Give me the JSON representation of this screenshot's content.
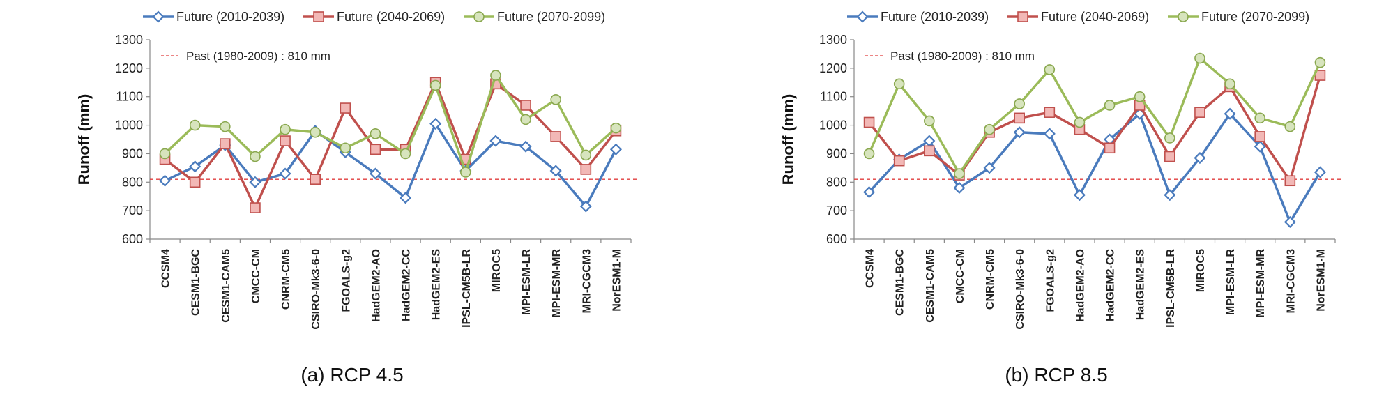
{
  "captions": {
    "a": "(a) RCP 4.5",
    "b": "(b) RCP 8.5"
  },
  "chart_data": [
    {
      "type": "line",
      "panel": "(a) RCP 4.5",
      "ylabel": "Runoff (mm)",
      "ylim": [
        600,
        1300
      ],
      "yticks": [
        600,
        700,
        800,
        900,
        1000,
        1100,
        1200,
        1300
      ],
      "categories": [
        "CCSM4",
        "CESM1-BGC",
        "CESM1-CAM5",
        "CMCC-CM",
        "CNRM-CM5",
        "CSIRO-Mk3-6-0",
        "FGOALS-g2",
        "HadGEM2-AO",
        "HadGEM2-CC",
        "HadGEM2-ES",
        "IPSL-CM5B-LR",
        "MIROC5",
        "MPI-ESM-LR",
        "MPI-ESM-MR",
        "MRI-CGCM3",
        "NorESM1-M"
      ],
      "series": [
        {
          "name": "Future (2010-2039)",
          "color": "#4a7bbd",
          "marker": "diamond",
          "values": [
            805,
            855,
            930,
            800,
            830,
            980,
            905,
            830,
            745,
            1005,
            840,
            945,
            925,
            840,
            715,
            915
          ]
        },
        {
          "name": "Future (2040-2069)",
          "color": "#c0504d",
          "marker": "square",
          "values": [
            880,
            800,
            935,
            710,
            945,
            810,
            1060,
            915,
            915,
            1150,
            880,
            1145,
            1070,
            960,
            845,
            980
          ]
        },
        {
          "name": "Future (2070-2099)",
          "color": "#9bbb59",
          "marker": "circle",
          "values": [
            900,
            1000,
            995,
            890,
            985,
            975,
            920,
            970,
            900,
            1140,
            835,
            1175,
            1020,
            1090,
            895,
            990
          ]
        }
      ],
      "reference_line": {
        "label": "Past (1980-2009)  : 810  mm",
        "value": 810,
        "color": "#e03c3c"
      }
    },
    {
      "type": "line",
      "panel": "(b) RCP 8.5",
      "ylabel": "Runoff (mm)",
      "ylim": [
        600,
        1300
      ],
      "yticks": [
        600,
        700,
        800,
        900,
        1000,
        1100,
        1200,
        1300
      ],
      "categories": [
        "CCSM4",
        "CESM1-BGC",
        "CESM1-CAM5",
        "CMCC-CM",
        "CNRM-CM5",
        "CSIRO-Mk3-6-0",
        "FGOALS-g2",
        "HadGEM2-AO",
        "HadGEM2-CC",
        "HadGEM2-ES",
        "IPSL-CM5B-LR",
        "MIROC5",
        "MPI-ESM-LR",
        "MPI-ESM-MR",
        "MRI-CGCM3",
        "NorESM1-M"
      ],
      "series": [
        {
          "name": "Future (2010-2039)",
          "color": "#4a7bbd",
          "marker": "diamond",
          "values": [
            765,
            880,
            945,
            780,
            850,
            975,
            970,
            755,
            950,
            1040,
            755,
            885,
            1040,
            925,
            660,
            835
          ]
        },
        {
          "name": "Future (2040-2069)",
          "color": "#c0504d",
          "marker": "square",
          "values": [
            1010,
            875,
            910,
            825,
            975,
            1025,
            1045,
            985,
            920,
            1070,
            890,
            1045,
            1135,
            960,
            805,
            1175
          ]
        },
        {
          "name": "Future (2070-2099)",
          "color": "#9bbb59",
          "marker": "circle",
          "values": [
            900,
            1145,
            1015,
            830,
            985,
            1075,
            1195,
            1010,
            1070,
            1100,
            955,
            1235,
            1145,
            1025,
            995,
            1220
          ]
        }
      ],
      "reference_line": {
        "label": "Past (1980-2009)  : 810  mm",
        "value": 810,
        "color": "#e03c3c"
      }
    }
  ]
}
